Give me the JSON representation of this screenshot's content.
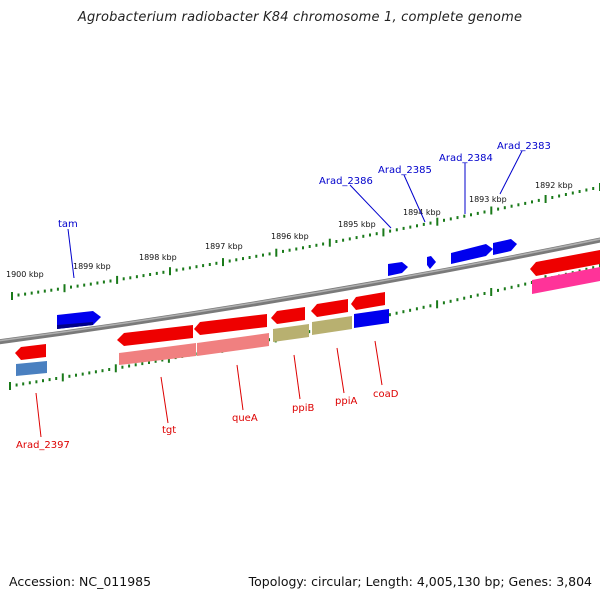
{
  "title": "Agrobacterium radiobacter K84 chromosome 1, complete genome",
  "footer": {
    "accession": "Accession: NC_011985",
    "summary": "Topology: circular; Length: 4,005,130 bp; Genes: 3,804"
  },
  "colors": {
    "backbone": "#808080",
    "ticks": "#1a7a1a",
    "forward_gene": "#0000ee",
    "reverse_gene": "#ee0000",
    "cds_reverse": "#f08080",
    "cds_olive": "#b8b070",
    "cds_blue": "#4a80c0",
    "pink": "#ff3399"
  },
  "kbp_labels": [
    "1900 kbp",
    "1899 kbp",
    "1898 kbp",
    "1897 kbp",
    "1896 kbp",
    "1895 kbp",
    "1894 kbp",
    "1893 kbp",
    "1892 kbp"
  ],
  "forward_labels": [
    "tam",
    "Arad_2386",
    "Arad_2385",
    "Arad_2384",
    "Arad_2383"
  ],
  "reverse_labels": [
    "Arad_2397",
    "tgt",
    "queA",
    "ppiB",
    "ppiA",
    "coaD"
  ]
}
